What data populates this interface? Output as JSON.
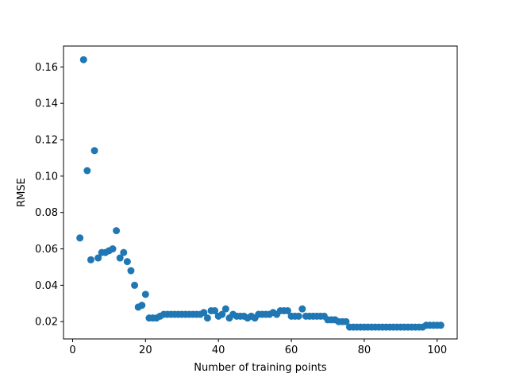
{
  "chart_data": {
    "type": "scatter",
    "title": "",
    "xlabel": "Number of training points",
    "ylabel": "RMSE",
    "xlim": [
      -2.5,
      105.5
    ],
    "ylim": [
      0.0105,
      0.1715
    ],
    "xticks": [
      0,
      20,
      40,
      60,
      80,
      100
    ],
    "xtick_labels": [
      "0",
      "20",
      "40",
      "60",
      "80",
      "100"
    ],
    "yticks": [
      0.02,
      0.04,
      0.06,
      0.08,
      0.1,
      0.12,
      0.14,
      0.16
    ],
    "ytick_labels": [
      "0.02",
      "0.04",
      "0.06",
      "0.08",
      "0.10",
      "0.12",
      "0.14",
      "0.16"
    ],
    "grid": false,
    "marker_color": "#1f77b4",
    "x": [
      2,
      3,
      4,
      5,
      6,
      7,
      8,
      9,
      10,
      11,
      12,
      13,
      14,
      15,
      16,
      17,
      18,
      19,
      20,
      21,
      22,
      23,
      24,
      25,
      26,
      27,
      28,
      29,
      30,
      31,
      32,
      33,
      34,
      35,
      36,
      37,
      38,
      39,
      40,
      41,
      42,
      43,
      44,
      45,
      46,
      47,
      48,
      49,
      50,
      51,
      52,
      53,
      54,
      55,
      56,
      57,
      58,
      59,
      60,
      61,
      62,
      63,
      64,
      65,
      66,
      67,
      68,
      69,
      70,
      71,
      72,
      73,
      74,
      75,
      76,
      77,
      78,
      79,
      80,
      81,
      82,
      83,
      84,
      85,
      86,
      87,
      88,
      89,
      90,
      91,
      92,
      93,
      94,
      95,
      96,
      97,
      98,
      99,
      100,
      101
    ],
    "y": [
      0.066,
      0.164,
      0.103,
      0.054,
      0.114,
      0.055,
      0.058,
      0.058,
      0.059,
      0.06,
      0.07,
      0.055,
      0.058,
      0.053,
      0.048,
      0.04,
      0.028,
      0.029,
      0.035,
      0.022,
      0.022,
      0.022,
      0.023,
      0.024,
      0.024,
      0.024,
      0.024,
      0.024,
      0.024,
      0.024,
      0.024,
      0.024,
      0.024,
      0.024,
      0.025,
      0.022,
      0.026,
      0.026,
      0.023,
      0.024,
      0.027,
      0.022,
      0.024,
      0.023,
      0.023,
      0.023,
      0.022,
      0.023,
      0.022,
      0.024,
      0.024,
      0.024,
      0.024,
      0.025,
      0.024,
      0.026,
      0.026,
      0.026,
      0.023,
      0.023,
      0.023,
      0.027,
      0.023,
      0.023,
      0.023,
      0.023,
      0.023,
      0.023,
      0.021,
      0.021,
      0.021,
      0.02,
      0.02,
      0.02,
      0.017,
      0.017,
      0.017,
      0.017,
      0.017,
      0.017,
      0.017,
      0.017,
      0.017,
      0.017,
      0.017,
      0.017,
      0.017,
      0.017,
      0.017,
      0.017,
      0.017,
      0.017,
      0.017,
      0.017,
      0.017,
      0.018,
      0.018,
      0.018,
      0.018,
      0.018
    ]
  }
}
